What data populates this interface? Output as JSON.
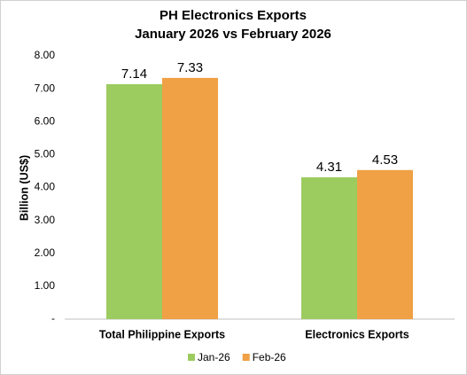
{
  "chart_data": {
    "type": "bar",
    "title": "PH Electronics Exports",
    "subtitle": "January 2026 vs February 2026",
    "y_label": "Billion (US$)",
    "categories": [
      "Total Philippine Exports",
      "Electronics Exports"
    ],
    "series": [
      {
        "name": "Jan-26",
        "color": "#9ccb5f",
        "values": [
          7.14,
          4.31
        ]
      },
      {
        "name": "Feb-26",
        "color": "#f0a045",
        "values": [
          7.33,
          4.53
        ]
      }
    ],
    "ylim": [
      0,
      8
    ],
    "yticks": [
      {
        "value": 0,
        "label": "-"
      },
      {
        "value": 1,
        "label": "1.00"
      },
      {
        "value": 2,
        "label": "2.00"
      },
      {
        "value": 3,
        "label": "3.00"
      },
      {
        "value": 4,
        "label": "4.00"
      },
      {
        "value": 5,
        "label": "5.00"
      },
      {
        "value": 6,
        "label": "6.00"
      },
      {
        "value": 7,
        "label": "7.00"
      },
      {
        "value": 8,
        "label": "8.00"
      }
    ],
    "grid": false,
    "legend": "bottom",
    "data_labels": true
  }
}
